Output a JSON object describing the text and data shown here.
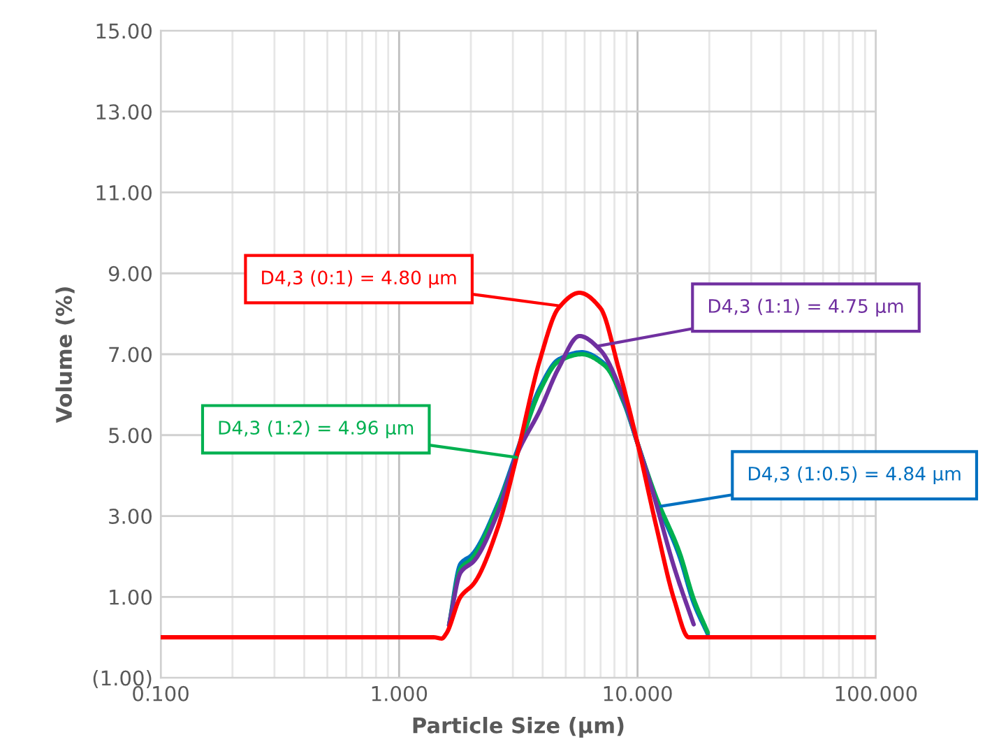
{
  "chart_data": {
    "type": "line",
    "xlabel": "Particle Size (µm)",
    "ylabel": "Volume (%)",
    "log": "x",
    "xlim": [
      0.1,
      100
    ],
    "xticks": [
      {
        "value": 0.1,
        "label": "0.100"
      },
      {
        "value": 1,
        "label": "1.000"
      },
      {
        "value": 10,
        "label": "10.000"
      },
      {
        "value": 100,
        "label": "100.000"
      }
    ],
    "ylim": [
      -1,
      15
    ],
    "yticks": [
      {
        "value": -1,
        "label": "(1.00)"
      },
      {
        "value": 1,
        "label": "1.00"
      },
      {
        "value": 3,
        "label": "3.00"
      },
      {
        "value": 5,
        "label": "5.00"
      },
      {
        "value": 7,
        "label": "7.00"
      },
      {
        "value": 9,
        "label": "9.00"
      },
      {
        "value": 11,
        "label": "11.00"
      },
      {
        "value": 13,
        "label": "13.00"
      },
      {
        "value": 15,
        "label": "15.00"
      }
    ],
    "grid": true,
    "legend": false,
    "marker": "none",
    "line_style": "solid",
    "series": [
      {
        "color": "#ff0000",
        "x": [
          0.1,
          1.4,
          1.51,
          1.58,
          1.81,
          2.07,
          2.6,
          3.11,
          3.9,
          4.66,
          5.71,
          6.99,
          8.33,
          10.0,
          12.0,
          14.3,
          16.4,
          100
        ],
        "values": [
          0,
          0,
          -0.03,
          0.1,
          1.0,
          1.35,
          2.73,
          4.46,
          6.87,
          8.14,
          8.52,
          8.14,
          6.65,
          4.8,
          2.73,
          0.9,
          0,
          0
        ]
      },
      {
        "color": "#7030a0",
        "x": [
          1.62,
          1.81,
          2.07,
          2.6,
          3.11,
          3.9,
          4.66,
          5.71,
          6.99,
          8.76,
          10.0,
          11.5,
          14.3,
          17.2
        ],
        "values": [
          0.3,
          1.6,
          1.9,
          3.1,
          4.5,
          5.62,
          6.65,
          7.45,
          7.1,
          5.9,
          4.8,
          3.66,
          1.7,
          0.32
        ]
      },
      {
        "color": "#00b050",
        "x": [
          1.62,
          1.81,
          2.02,
          2.6,
          3.11,
          3.9,
          4.66,
          5.84,
          7.28,
          8.76,
          10.0,
          12.0,
          15.0,
          17.2,
          19.7
        ],
        "values": [
          0.3,
          1.7,
          1.95,
          3.25,
          4.5,
          6.1,
          6.82,
          7.0,
          6.72,
          5.84,
          4.8,
          3.45,
          2.1,
          0.95,
          0.12
        ]
      },
      {
        "color": "#0070c0",
        "x": [
          1.62,
          1.81,
          2.02,
          2.6,
          3.11,
          3.9,
          4.66,
          5.84,
          7.28,
          8.76,
          10.0,
          12.0,
          15.0,
          17.2,
          19.7
        ],
        "values": [
          0.3,
          1.82,
          2.04,
          3.31,
          4.58,
          6.18,
          6.87,
          7.05,
          6.76,
          5.8,
          4.8,
          3.4,
          2.0,
          0.85,
          0.08
        ]
      }
    ],
    "annotations": [
      {
        "text": "D4,3 (0:1) = 4.80 µm",
        "x": 4.66,
        "y": 8.2
      },
      {
        "text": "D4,3 (1:1) = 4.75 µm",
        "x": 6.81,
        "y": 7.2
      },
      {
        "text": "D4,3 (1:2) = 4.96 µm",
        "x": 3.11,
        "y": 4.45
      },
      {
        "text": "D4,3 (1:0.5) = 4.84 µm",
        "x": 12.5,
        "y": 3.24
      }
    ]
  }
}
